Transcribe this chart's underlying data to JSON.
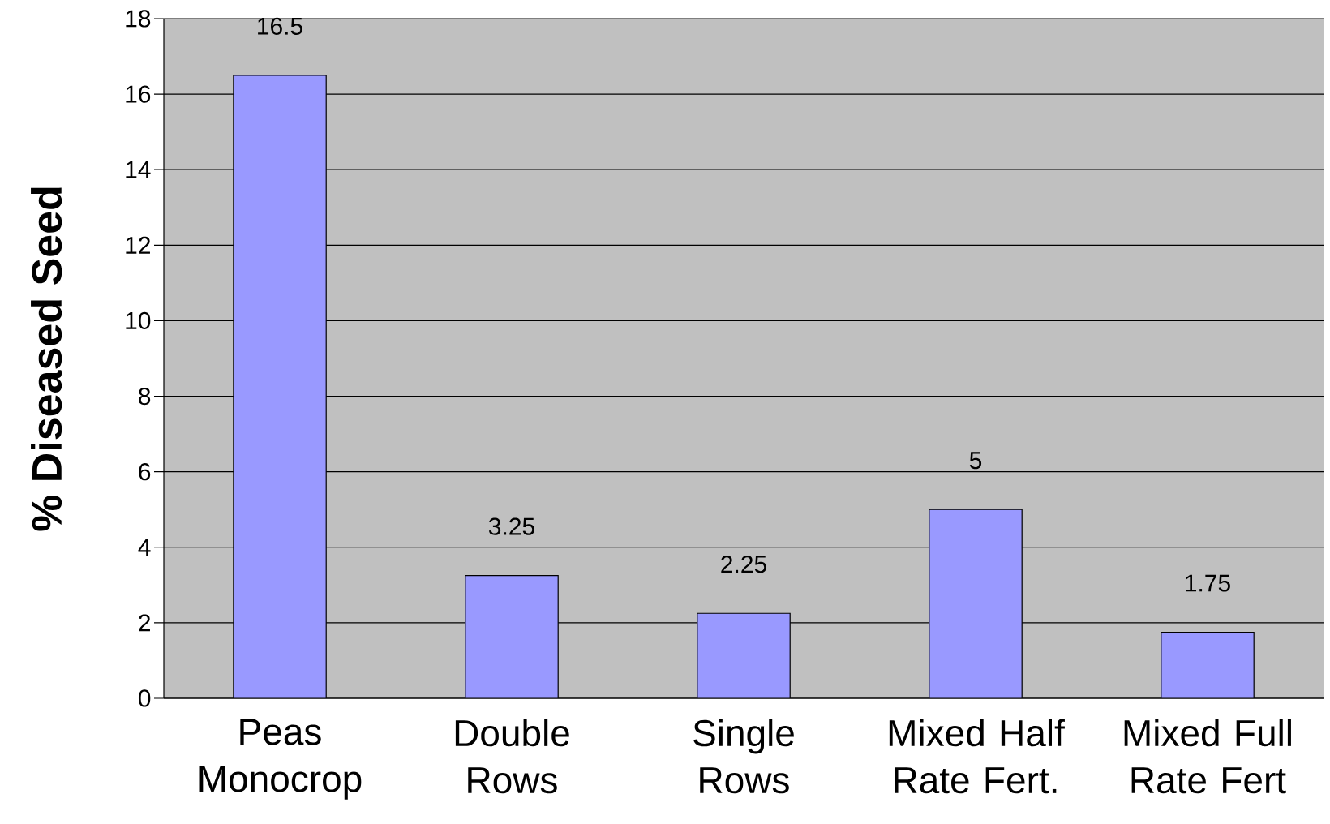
{
  "chart_data": {
    "type": "bar",
    "ylabel": "% Diseased Seed",
    "categories": [
      "Peas Monocrop",
      "Double Rows",
      "Single Rows",
      "Mixed Half Rate Fert.",
      "Mixed Full Rate Fert"
    ],
    "values": [
      16.5,
      3.25,
      2.25,
      5,
      1.75
    ],
    "color": "#9999ff",
    "ylim": [
      0,
      18
    ],
    "yticks": [
      0,
      2,
      4,
      6,
      8,
      10,
      12,
      14,
      16,
      18
    ],
    "grid": "y",
    "data_labels": true
  }
}
